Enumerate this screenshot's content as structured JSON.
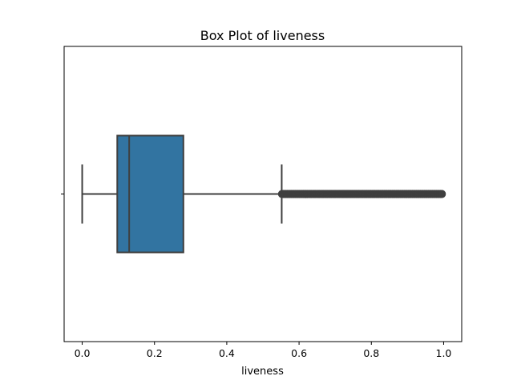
{
  "chart_data": {
    "type": "box",
    "title": "Box Plot of liveness",
    "xlabel": "liveness",
    "ylabel": "",
    "xlim": [
      -0.05,
      1.05
    ],
    "x_ticks": [
      0.0,
      0.2,
      0.4,
      0.6,
      0.8,
      1.0
    ],
    "x_tick_labels": [
      "0.0",
      "0.2",
      "0.4",
      "0.6",
      "0.8",
      "1.0"
    ],
    "orientation": "horizontal",
    "grid": false,
    "series": [
      {
        "whisker_low": 0.0,
        "q1": 0.097,
        "median": 0.13,
        "q3": 0.28,
        "whisker_high": 0.552,
        "outliers_range": [
          0.553,
          0.995
        ]
      }
    ],
    "colors": {
      "box_fill": "#3274a1",
      "line": "#3f3f3f",
      "outlier": "#3f3f3f",
      "spine": "#000000"
    }
  }
}
